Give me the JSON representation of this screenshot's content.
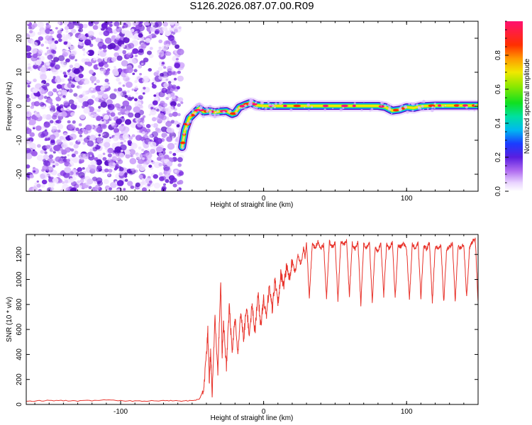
{
  "title": "S126.2026.087.07.00.R09",
  "chart_data": [
    {
      "type": "heatmap",
      "title": "S126.2026.087.07.00.R09",
      "xlabel": "Height of straight line (km)",
      "ylabel": "Frequency (Hz)",
      "xlim": [
        -166,
        150
      ],
      "ylim": [
        -25,
        25
      ],
      "xticks": [
        -100,
        0,
        100
      ],
      "xtick_labels": [
        "-100",
        "0",
        "100"
      ],
      "yticks": [
        -20,
        -10,
        0,
        10,
        20
      ],
      "ytick_labels": [
        "-20",
        "-10",
        "0",
        "10",
        "20"
      ],
      "noise_region_x": [
        -166,
        -57
      ],
      "frequency_track": {
        "x": [
          -57,
          -55,
          -52,
          -48,
          -45,
          -42,
          -38,
          -34,
          -30,
          -26,
          -22,
          -20,
          -17,
          -13,
          -10,
          -8,
          -5,
          0,
          10,
          20,
          40,
          60,
          80,
          85,
          90,
          95,
          100,
          105,
          110,
          115,
          120,
          150
        ],
        "freq": [
          -12,
          -7,
          -3.5,
          -1.8,
          -0.6,
          -1.6,
          -1.4,
          -1.8,
          -1.5,
          -1.4,
          -2.3,
          -2.0,
          -0.3,
          0.4,
          0.9,
          0.9,
          0.3,
          0.1,
          0.1,
          0.1,
          0.1,
          0.1,
          0.1,
          -0.2,
          -1.3,
          -1.0,
          -0.3,
          -0.5,
          0.0,
          0.1,
          0.2,
          0.2
        ]
      },
      "colorbar": {
        "label": "Normalized spectral amplitude",
        "range": [
          0,
          1
        ],
        "ticks": [
          0.0,
          0.2,
          0.4,
          0.6,
          0.8
        ],
        "tick_labels": [
          "0.0",
          "0.2",
          "0.4",
          "0.6",
          "0.8"
        ]
      }
    },
    {
      "type": "line",
      "xlabel": "Height of straight line (km)",
      "ylabel": "SNR (10 * v/v)",
      "xlim": [
        -166,
        150
      ],
      "ylim": [
        0,
        1360
      ],
      "xticks": [
        -100,
        0,
        100
      ],
      "xtick_labels": [
        "-100",
        "0",
        "100"
      ],
      "yticks": [
        0,
        200,
        400,
        600,
        800,
        1000,
        1200
      ],
      "ytick_labels": [
        "0",
        "200",
        "400",
        "600",
        "800",
        "1000",
        "1200"
      ],
      "series": [
        {
          "name": "SNR",
          "color": "#e8322a",
          "x": [
            -166,
            -150,
            -130,
            -110,
            -90,
            -70,
            -55,
            -45,
            -42,
            -40,
            -39,
            -38,
            -37,
            -36,
            -34,
            -32,
            -30,
            -29,
            -28,
            -26,
            -24,
            -22,
            -20,
            -18,
            -16,
            -14,
            -12,
            -10,
            -8,
            -6,
            -4,
            -2,
            0,
            2,
            4,
            6,
            8,
            10,
            12,
            14,
            16,
            18,
            20,
            22,
            24,
            26,
            28,
            29,
            30,
            32,
            34,
            36,
            38,
            40,
            42,
            44,
            46,
            48,
            50,
            52,
            54,
            56,
            58,
            60,
            62,
            64,
            66,
            68,
            70,
            72,
            74,
            76,
            78,
            80,
            82,
            84,
            86,
            88,
            90,
            92,
            94,
            96,
            98,
            100,
            102,
            104,
            106,
            108,
            110,
            112,
            114,
            116,
            118,
            120,
            122,
            124,
            126,
            128,
            130,
            132,
            134,
            136,
            138,
            140,
            142,
            144,
            146,
            148,
            150
          ],
          "y": [
            25,
            32,
            28,
            35,
            26,
            30,
            28,
            40,
            120,
            380,
            600,
            180,
            450,
            60,
            700,
            250,
            980,
            400,
            650,
            300,
            780,
            420,
            700,
            380,
            760,
            520,
            780,
            560,
            800,
            580,
            900,
            620,
            850,
            700,
            960,
            760,
            1000,
            800,
            1050,
            950,
            1100,
            1000,
            1150,
            1050,
            1200,
            1120,
            1250,
            1180,
            1300,
            850,
            1280,
            1250,
            1300,
            1250,
            1280,
            850,
            1300,
            1260,
            1290,
            830,
            1300,
            1280,
            1310,
            870,
            1290,
            1240,
            1300,
            800,
            1280,
            1250,
            1300,
            820,
            1260,
            1220,
            1290,
            870,
            1280,
            1250,
            1300,
            850,
            1270,
            1260,
            1290,
            1240,
            840,
            1280,
            1250,
            1300,
            850,
            1270,
            1240,
            1300,
            820,
            1260,
            1250,
            1280,
            820,
            1240,
            1260,
            1290,
            830,
            1260,
            1250,
            1280,
            850,
            1250,
            1300,
            1330,
            820
          ]
        }
      ]
    }
  ]
}
